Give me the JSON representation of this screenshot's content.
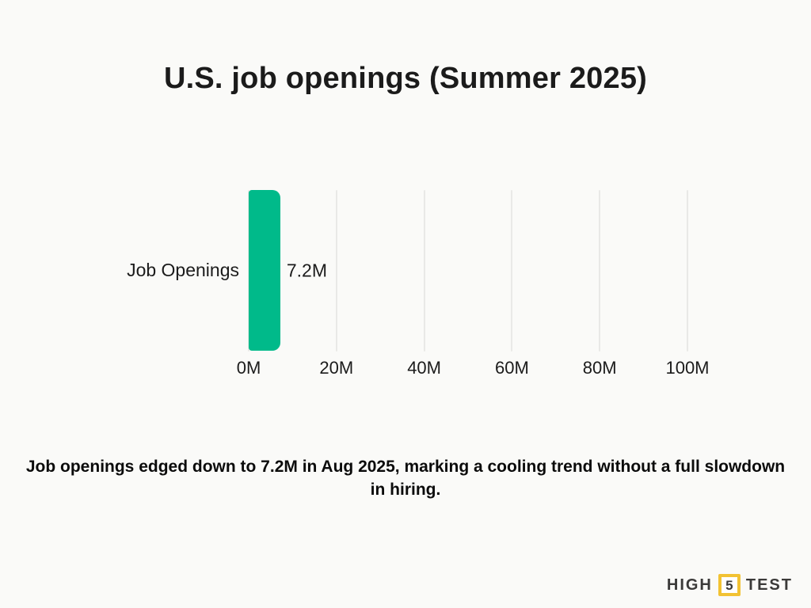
{
  "title": "U.S. job openings (Summer 2025)",
  "caption": "Job openings edged down to 7.2M in Aug 2025, marking a cooling trend without a full slowdown in hiring.",
  "colors": {
    "background": "#FAFAF8",
    "bar": "#00BA8A",
    "gridline": "#E9E9E7",
    "text": "#1B1B1B",
    "logo_text": "#3B3A39",
    "logo_box_border": "#F2C233"
  },
  "logo": {
    "left_word": "HIGH",
    "box_number": "5",
    "right_word": "TEST"
  },
  "chart_data": {
    "type": "bar",
    "orientation": "horizontal",
    "title": "U.S. job openings (Summer 2025)",
    "categories": [
      "Job Openings"
    ],
    "values": [
      7.2
    ],
    "value_labels": [
      "7.2M"
    ],
    "unit": "M",
    "xlabel": "",
    "ylabel": "",
    "xlim": [
      0,
      100
    ],
    "xtick_values": [
      0,
      20,
      40,
      60,
      80,
      100
    ],
    "xtick_labels": [
      "0M",
      "20M",
      "40M",
      "60M",
      "80M",
      "100M"
    ],
    "grid": "vertical-gridlines-on",
    "legend": "none",
    "annotation": "Job openings edged down to 7.2M in Aug 2025, marking a cooling trend without a full slowdown in hiring."
  }
}
